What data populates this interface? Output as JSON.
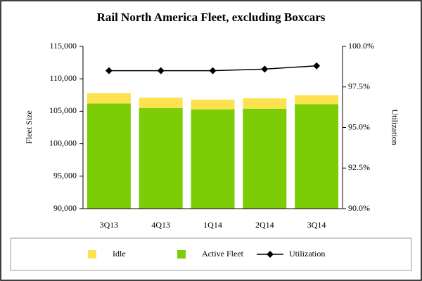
{
  "chart_data": {
    "type": "stacked-bar-line",
    "title": "Rail North America Fleet, excluding Boxcars",
    "ylabel": "Fleet Size",
    "y2label": "Utilization",
    "categories": [
      "3Q13",
      "4Q13",
      "1Q14",
      "2Q14",
      "3Q14"
    ],
    "series": [
      {
        "name": "Idle",
        "color": "#fde24f",
        "kind": "bar",
        "values": [
          1600,
          1600,
          1500,
          1600,
          1400
        ]
      },
      {
        "name": "Active Fleet",
        "color": "#7dcd06",
        "kind": "bar",
        "values": [
          106200,
          105500,
          105300,
          105400,
          106100
        ]
      },
      {
        "name": "Utilization",
        "color": "#000000",
        "kind": "line",
        "axis": "y2",
        "values": [
          98.5,
          98.5,
          98.5,
          98.6,
          98.8
        ]
      }
    ],
    "ylim": [
      90000,
      115000
    ],
    "yticks": [
      {
        "value": 90000,
        "label": "90,000"
      },
      {
        "value": 95000,
        "label": "95,000"
      },
      {
        "value": 100000,
        "label": "100,000"
      },
      {
        "value": 105000,
        "label": "105,000"
      },
      {
        "value": 110000,
        "label": "110,000"
      },
      {
        "value": 115000,
        "label": "115,000"
      }
    ],
    "y2lim": [
      90,
      100
    ],
    "y2ticks": [
      {
        "value": 90,
        "label": "90.0%"
      },
      {
        "value": 92.5,
        "label": "92.5%"
      },
      {
        "value": 95,
        "label": "95.0%"
      },
      {
        "value": 97.5,
        "label": "97.5%"
      },
      {
        "value": 100,
        "label": "100.0%"
      }
    ]
  }
}
